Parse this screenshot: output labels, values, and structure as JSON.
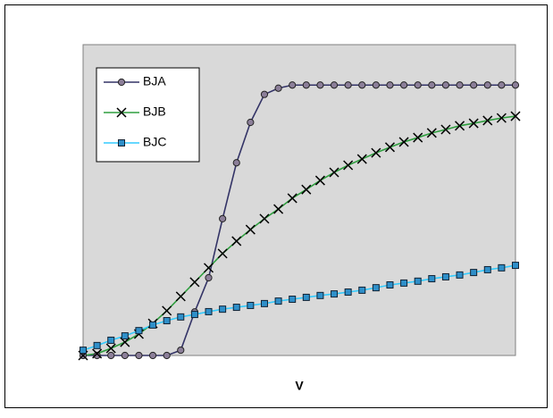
{
  "chart_data": {
    "type": "line",
    "x_label": "V",
    "x": [
      0,
      1,
      2,
      3,
      4,
      5,
      6,
      7,
      8,
      9,
      10,
      11,
      12,
      13,
      14,
      15,
      16,
      17,
      18,
      19,
      20,
      21,
      22,
      23,
      24,
      25,
      26,
      27,
      28,
      29,
      30,
      31
    ],
    "xlim": [
      0,
      31
    ],
    "ylim": [
      0,
      100
    ],
    "legend": "upper-left",
    "series": [
      {
        "name": "BJA",
        "color": "#333366",
        "marker": "circle",
        "marker_color": "#8c7f99",
        "values": [
          0,
          0,
          0,
          0,
          0,
          0,
          0,
          1.7,
          14,
          25,
          44,
          62,
          75,
          84,
          86,
          87,
          87,
          87,
          87,
          87,
          87,
          87,
          87,
          87,
          87,
          87,
          87,
          87,
          87,
          87,
          87,
          87
        ]
      },
      {
        "name": "BJB",
        "color": "#2e9e3e",
        "marker": "x",
        "marker_color": "#000000",
        "values": [
          0,
          0.6,
          2.3,
          4.3,
          6.9,
          10.3,
          14.4,
          19,
          23.6,
          28.2,
          32.8,
          36.8,
          40.5,
          44,
          47.1,
          50.6,
          53.4,
          56.3,
          58.9,
          61.2,
          63.2,
          65.2,
          67,
          68.7,
          70.1,
          71.6,
          72.7,
          73.9,
          74.7,
          75.6,
          76.4,
          77
        ]
      },
      {
        "name": "BJC",
        "color": "#33ccff",
        "marker": "square",
        "marker_color": "#2f8fc9",
        "values": [
          1.7,
          3.2,
          4.9,
          6.3,
          8,
          9.8,
          11.2,
          12.4,
          13.2,
          14.1,
          14.9,
          15.5,
          16.1,
          16.7,
          17.5,
          18.1,
          18.7,
          19.3,
          19.8,
          20.4,
          21,
          21.8,
          22.7,
          23.3,
          23.9,
          24.7,
          25.3,
          25.9,
          26.7,
          27.6,
          28.2,
          29
        ]
      }
    ]
  }
}
